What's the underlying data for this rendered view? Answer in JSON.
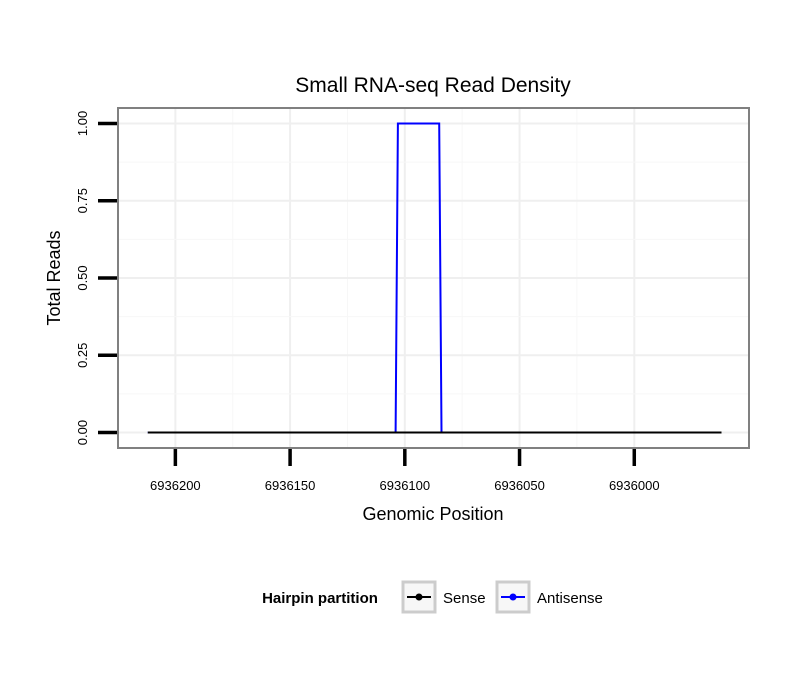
{
  "chart_data": {
    "type": "line",
    "title": "Small RNA-seq Read Density",
    "xlabel": "Genomic Position",
    "ylabel": "Total Reads",
    "x_reversed": true,
    "xlim": [
      6936225,
      6935950
    ],
    "ylim": [
      -0.05,
      1.05
    ],
    "x_ticks": [
      6936200,
      6936150,
      6936100,
      6936050,
      6936000
    ],
    "x_tick_labels": [
      "6936200",
      "6936150",
      "6936100",
      "6936050",
      "6936000"
    ],
    "y_ticks": [
      0,
      0.25,
      0.5,
      0.75,
      1.0
    ],
    "y_tick_labels": [
      "0.00",
      "0.25",
      "0.50",
      "0.75",
      "1.00"
    ],
    "grid": true,
    "legend": {
      "title": "Hairpin partition",
      "position": "bottom",
      "entries": [
        "Sense",
        "Antisense"
      ]
    },
    "series": [
      {
        "name": "Sense",
        "color": "#000000",
        "x": [
          6936212,
          6935962
        ],
        "y": [
          0,
          0
        ]
      },
      {
        "name": "Antisense",
        "color": "#0000ff",
        "x": [
          6936212,
          6936104,
          6936103,
          6936085,
          6936084,
          6935962
        ],
        "y": [
          0,
          0,
          1,
          1,
          0,
          0
        ]
      }
    ]
  }
}
